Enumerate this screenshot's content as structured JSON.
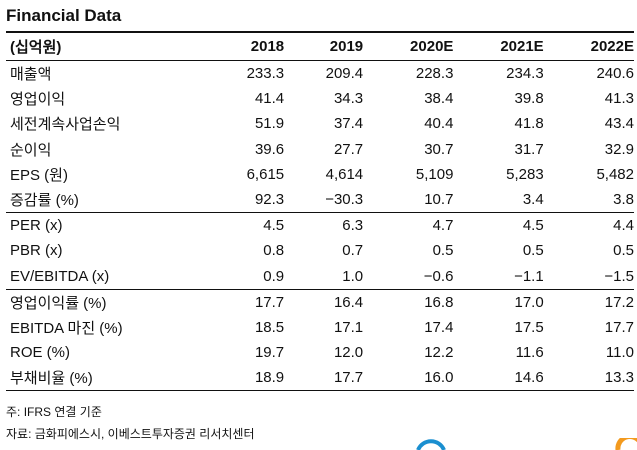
{
  "title": "Financial Data",
  "table": {
    "headers": [
      "(십억원)",
      "2018",
      "2019",
      "2020E",
      "2021E",
      "2022E"
    ],
    "rows": [
      [
        "매출액",
        "233.3",
        "209.4",
        "228.3",
        "234.3",
        "240.6"
      ],
      [
        "영업이익",
        "41.4",
        "34.3",
        "38.4",
        "39.8",
        "41.3"
      ],
      [
        "세전계속사업손익",
        "51.9",
        "37.4",
        "40.4",
        "41.8",
        "43.4"
      ],
      [
        "순이익",
        "39.6",
        "27.7",
        "30.7",
        "31.7",
        "32.9"
      ],
      [
        "EPS (원)",
        "6,615",
        "4,614",
        "5,109",
        "5,283",
        "5,482"
      ],
      [
        "증감률 (%)",
        "92.3",
        "−30.3",
        "10.7",
        "3.4",
        "3.8"
      ],
      [
        "PER (x)",
        "4.5",
        "6.3",
        "4.7",
        "4.5",
        "4.4"
      ],
      [
        "PBR (x)",
        "0.8",
        "0.7",
        "0.5",
        "0.5",
        "0.5"
      ],
      [
        "EV/EBITDA (x)",
        "0.9",
        "1.0",
        "−0.6",
        "−1.1",
        "−1.5"
      ],
      [
        "영업이익률 (%)",
        "17.7",
        "16.4",
        "16.8",
        "17.0",
        "17.2"
      ],
      [
        "EBITDA 마진 (%)",
        "18.5",
        "17.1",
        "17.4",
        "17.5",
        "17.7"
      ],
      [
        "ROE (%)",
        "19.7",
        "12.0",
        "12.2",
        "11.6",
        "11.0"
      ],
      [
        "부채비율 (%)",
        "18.9",
        "17.7",
        "16.0",
        "14.6",
        "13.3"
      ]
    ]
  },
  "notes": [
    "주: IFRS 연결 기준",
    "자료: 금화피에스시, 이베스트투자증권 리서치센터"
  ],
  "colors": {
    "logo_blue": "#1a8fd0",
    "logo_orange": "#f39a1e"
  }
}
